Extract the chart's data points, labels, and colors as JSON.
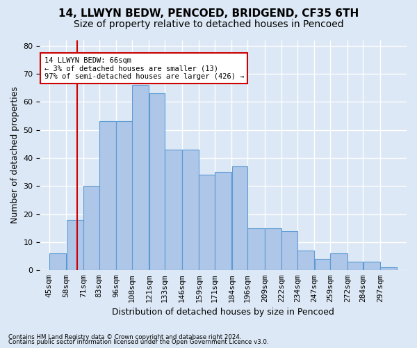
{
  "title1": "14, LLWYN BEDW, PENCOED, BRIDGEND, CF35 6TH",
  "title2": "Size of property relative to detached houses in Pencoed",
  "xlabel": "Distribution of detached houses by size in Pencoed",
  "ylabel": "Number of detached properties",
  "bins": [
    45,
    58,
    71,
    83,
    96,
    108,
    121,
    133,
    146,
    159,
    171,
    184,
    196,
    209,
    222,
    234,
    247,
    259,
    272,
    284,
    297,
    310
  ],
  "counts": [
    6,
    18,
    30,
    53,
    53,
    66,
    63,
    43,
    43,
    34,
    35,
    37,
    15,
    15,
    14,
    7,
    4,
    6,
    3,
    3,
    1
  ],
  "bar_color": "#aec6e8",
  "bar_edge_color": "#5b9bd5",
  "redline_x": 66,
  "ylim": [
    0,
    82
  ],
  "yticks": [
    0,
    10,
    20,
    30,
    40,
    50,
    60,
    70,
    80
  ],
  "annotation_title": "14 LLWYN BEDW: 66sqm",
  "annotation_line1": "← 3% of detached houses are smaller (13)",
  "annotation_line2": "97% of semi-detached houses are larger (426) →",
  "annotation_box_color": "#ffffff",
  "annotation_box_edge": "#cc0000",
  "footnote1": "Contains HM Land Registry data © Crown copyright and database right 2024.",
  "footnote2": "Contains public sector information licensed under the Open Government Licence v3.0.",
  "bg_color": "#dce8f5",
  "grid_color": "#ffffff",
  "title1_fontsize": 11,
  "title2_fontsize": 10,
  "xlabel_fontsize": 9,
  "ylabel_fontsize": 9,
  "tick_fontsize": 8
}
